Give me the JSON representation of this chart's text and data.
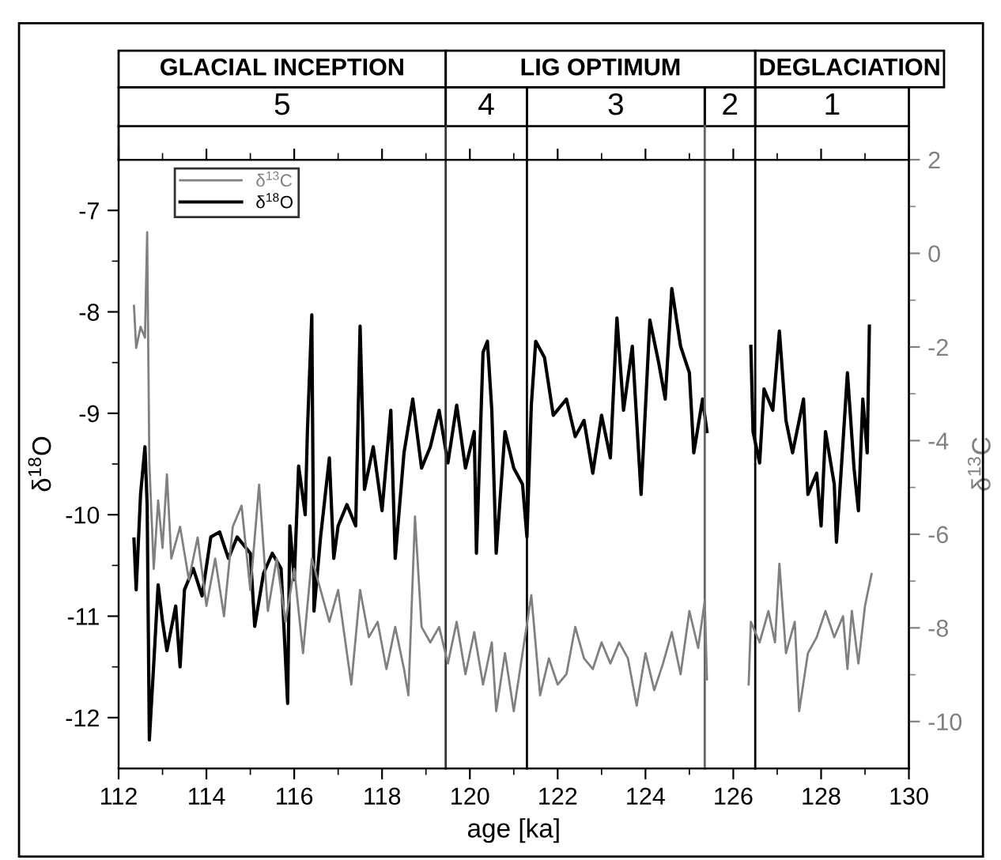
{
  "chart_data": {
    "type": "line",
    "xlabel": "age [ka]",
    "ylabel": "δ$^{18}$O",
    "y2label": "δ$^{13}$C",
    "xlim": [
      112,
      130
    ],
    "xticks": [
      112,
      114,
      116,
      118,
      120,
      122,
      124,
      126,
      128,
      130
    ],
    "ylim": [
      -12.5,
      -6.5
    ],
    "yticks": [
      -12,
      -11,
      -10,
      -9,
      -8,
      -7
    ],
    "y2lim": [
      -11,
      2
    ],
    "y2ticks": [
      -10,
      -8,
      -6,
      -4,
      -2,
      0,
      2
    ],
    "legend": "top left",
    "grid": false,
    "line_style": "solid",
    "marker": "none",
    "series": [
      {
        "name": "δ$^{13}$C",
        "color": "#808080",
        "axis": "y2",
        "x": [
          112.35,
          112.4,
          112.5,
          112.6,
          112.65,
          112.7,
          112.8,
          112.9,
          113.0,
          113.1,
          113.2,
          113.4,
          113.6,
          113.8,
          114.0,
          114.2,
          114.4,
          114.6,
          114.8,
          115.0,
          115.2,
          115.4,
          115.6,
          115.8,
          116.0,
          116.2,
          116.4,
          116.6,
          116.8,
          117.0,
          117.2,
          117.3,
          117.5,
          117.7,
          117.9,
          118.1,
          118.3,
          118.5,
          118.6,
          118.75,
          118.9,
          119.1,
          119.3,
          119.5,
          119.7,
          119.9,
          120.1,
          120.3,
          120.5,
          120.6,
          120.8,
          121.0,
          121.2,
          121.4,
          121.6,
          121.8,
          122.0,
          122.2,
          122.4,
          122.6,
          122.8,
          123.0,
          123.2,
          123.4,
          123.6,
          123.8,
          124.0,
          124.2,
          124.4,
          124.6,
          124.8,
          125.0,
          125.2,
          125.35,
          125.4,
          125.9,
          126.35,
          126.4,
          126.6,
          126.8,
          126.95,
          127.05,
          127.2,
          127.4,
          127.5,
          127.7,
          127.9,
          128.1,
          128.3,
          128.5,
          128.6,
          128.7,
          128.85,
          129.0,
          129.15
        ],
        "values": [
          -1.12,
          -2.02,
          -1.57,
          -1.8,
          0.45,
          -4.49,
          -6.74,
          -5.28,
          -6.29,
          -4.72,
          -6.52,
          -5.84,
          -6.97,
          -6.07,
          -7.53,
          -6.52,
          -7.75,
          -5.84,
          -5.39,
          -7.19,
          -4.94,
          -7.64,
          -6.52,
          -7.87,
          -6.74,
          -8.54,
          -6.52,
          -7.19,
          -7.87,
          -7.19,
          -8.54,
          -9.21,
          -7.19,
          -8.2,
          -7.87,
          -8.88,
          -7.98,
          -8.88,
          -9.44,
          -5.62,
          -7.98,
          -8.31,
          -7.98,
          -8.76,
          -7.87,
          -8.99,
          -8.09,
          -9.21,
          -8.31,
          -9.78,
          -8.54,
          -9.78,
          -8.54,
          -7.3,
          -9.44,
          -8.65,
          -9.21,
          -8.99,
          -7.98,
          -8.65,
          -8.88,
          -8.31,
          -8.76,
          -8.31,
          -8.65,
          -9.66,
          -8.54,
          -9.33,
          -8.76,
          -8.09,
          -8.99,
          -7.64,
          -8.43,
          -7.42,
          -9.1,
          null,
          -9.21,
          -7.87,
          -8.31,
          -7.64,
          -8.31,
          -6.63,
          -8.54,
          -7.87,
          -9.78,
          -8.54,
          -8.2,
          -7.64,
          -8.2,
          -7.75,
          -8.88,
          -7.64,
          -8.76,
          -7.53,
          -6.85
        ]
      },
      {
        "name": "δ$^{18}$O",
        "color": "#000000",
        "x": [
          112.35,
          112.4,
          112.5,
          112.6,
          112.65,
          112.7,
          112.8,
          112.9,
          113.0,
          113.1,
          113.3,
          113.4,
          113.5,
          113.7,
          113.9,
          114.1,
          114.3,
          114.5,
          114.7,
          115.0,
          115.1,
          115.3,
          115.5,
          115.7,
          115.85,
          115.9,
          116.0,
          116.1,
          116.25,
          116.3,
          116.4,
          116.45,
          116.6,
          116.8,
          116.9,
          117.0,
          117.2,
          117.4,
          117.5,
          117.6,
          117.8,
          118.0,
          118.2,
          118.3,
          118.5,
          118.7,
          118.9,
          119.1,
          119.3,
          119.5,
          119.7,
          119.9,
          120.1,
          120.15,
          120.3,
          120.4,
          120.5,
          120.6,
          120.8,
          121.0,
          121.2,
          121.3,
          121.4,
          121.5,
          121.7,
          121.9,
          122.2,
          122.4,
          122.6,
          122.8,
          123.0,
          123.2,
          123.35,
          123.5,
          123.7,
          123.9,
          124.1,
          124.3,
          124.45,
          124.6,
          124.8,
          125.0,
          125.1,
          125.3,
          125.4,
          125.9,
          126.4,
          126.45,
          126.6,
          126.7,
          126.9,
          127.05,
          127.2,
          127.35,
          127.6,
          127.7,
          127.9,
          128.0,
          128.1,
          128.3,
          128.35,
          128.5,
          128.6,
          128.75,
          128.85,
          128.95,
          129.05,
          129.1
        ],
        "values": [
          -10.24,
          -10.74,
          -9.8,
          -9.33,
          -9.9,
          -12.22,
          -11.47,
          -10.69,
          -11.05,
          -11.34,
          -10.9,
          -11.5,
          -10.74,
          -10.53,
          -10.8,
          -10.22,
          -10.17,
          -10.43,
          -10.22,
          -10.38,
          -11.1,
          -10.58,
          -10.38,
          -10.53,
          -11.86,
          -10.11,
          -10.64,
          -9.52,
          -10.0,
          -9.18,
          -8.03,
          -10.95,
          -10.22,
          -9.44,
          -10.43,
          -10.11,
          -9.9,
          -10.11,
          -8.14,
          -9.75,
          -9.33,
          -9.96,
          -8.97,
          -10.43,
          -9.39,
          -8.86,
          -9.54,
          -9.33,
          -8.97,
          -9.49,
          -8.92,
          -9.54,
          -9.18,
          -10.38,
          -8.4,
          -8.29,
          -8.97,
          -10.38,
          -9.18,
          -9.54,
          -9.7,
          -10.22,
          -8.92,
          -8.29,
          -8.45,
          -9.02,
          -8.86,
          -9.23,
          -9.07,
          -9.59,
          -9.02,
          -9.44,
          -8.06,
          -8.97,
          -8.34,
          -9.8,
          -8.08,
          -8.5,
          -8.86,
          -7.77,
          -8.34,
          -8.6,
          -9.39,
          -8.86,
          -9.18,
          null,
          -8.34,
          -9.18,
          -9.49,
          -8.76,
          -8.97,
          -8.19,
          -9.07,
          -9.39,
          -8.86,
          -9.8,
          -9.59,
          -10.11,
          -9.18,
          -9.7,
          -10.27,
          -9.28,
          -8.6,
          -9.54,
          -9.96,
          -8.86,
          -9.39,
          -8.14
        ]
      }
    ],
    "ref_lines": [
      {
        "axis": "x",
        "value": 119.45,
        "color": "#333333"
      },
      {
        "axis": "x",
        "value": 121.3,
        "color": "#000000"
      },
      {
        "axis": "x",
        "value": 125.35,
        "color": "#666666"
      },
      {
        "axis": "x",
        "value": 126.5,
        "color": "#000000"
      }
    ],
    "annotations": [
      "GLACIAL INCEPTION",
      "LIG OPTIMUM",
      "DEGLACIATION",
      "5",
      "4",
      "3",
      "2",
      "1"
    ]
  }
}
